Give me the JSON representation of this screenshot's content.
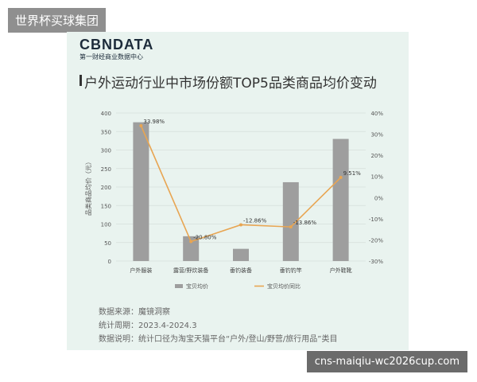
{
  "overlay": {
    "site_tag": "世界杯买球集团",
    "url_tag": "cns-maiqiu-wc2026cup.com"
  },
  "brand": {
    "logo": "CBNDATA",
    "subtitle": "第一财经商业数据中心"
  },
  "footer": {
    "source": "数据来源：魔镜洞察",
    "period": "统计周期：2023.4-2024.3",
    "note": "数据说明：统计口径为淘宝天猫平台“户外/登山/野营/旅行用品”类目"
  },
  "colors": {
    "bar": "#9e9e9e",
    "line": "#e8a552",
    "card_bg": "#e9f3ef"
  },
  "chart_data": {
    "type": "bar",
    "title": "户外运动行业中市场份额TOP5品类商品均价变动",
    "categories": [
      "户外服装",
      "露营/野炊装备",
      "垂钓装备",
      "垂钓钓竿",
      "户外鞋靴"
    ],
    "ylabel": "品类商品均价（元）",
    "ylim": [
      0,
      400
    ],
    "yticks": [
      "0",
      "50",
      "100",
      "150",
      "200",
      "250",
      "300",
      "350",
      "400"
    ],
    "y2lim": [
      -30,
      40
    ],
    "y2ticks": [
      "-30%",
      "-20%",
      "-10%",
      "0%",
      "10%",
      "20%",
      "30%",
      "40%"
    ],
    "series": [
      {
        "name": "宝贝均价",
        "type": "bar",
        "values": [
          375,
          67,
          33,
          213,
          330
        ]
      },
      {
        "name": "宝贝均价同比",
        "type": "line",
        "axis": "right",
        "values": [
          33.98,
          -20.8,
          -12.86,
          -13.86,
          9.51
        ],
        "labels": [
          "33.98%",
          "-20.80%",
          "-12.86%",
          "-13.86%",
          "9.51%"
        ]
      }
    ],
    "legend": "bottom",
    "grid": true
  }
}
